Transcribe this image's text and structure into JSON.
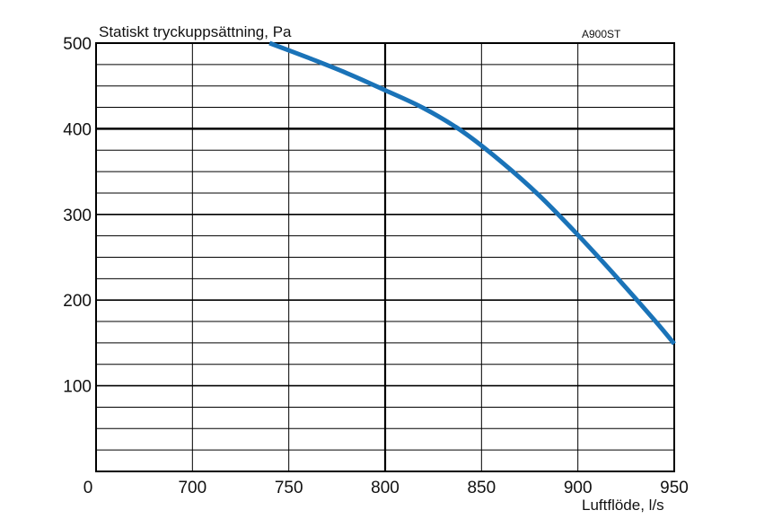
{
  "chart_data": {
    "type": "line",
    "title": "",
    "ylabel": "Statiskt tryckuppsättning, Pa",
    "xlabel": "Luftflöde, l/s",
    "model_label": "A900ST",
    "x_origin_label": "0",
    "xlim": [
      650,
      950
    ],
    "ylim": [
      0,
      500
    ],
    "x_ticks": [
      700,
      750,
      800,
      850,
      900,
      950
    ],
    "y_ticks": [
      100,
      200,
      300,
      400,
      500
    ],
    "grid": true,
    "curve_color": "#1a73b8",
    "series": [
      {
        "x": [
          740,
          760,
          780,
          800,
          820,
          840,
          860,
          880,
          900,
          920,
          940,
          950
        ],
        "y": [
          500,
          483,
          465,
          445,
          424,
          397,
          362,
          322,
          276,
          227,
          176,
          149
        ]
      }
    ]
  }
}
